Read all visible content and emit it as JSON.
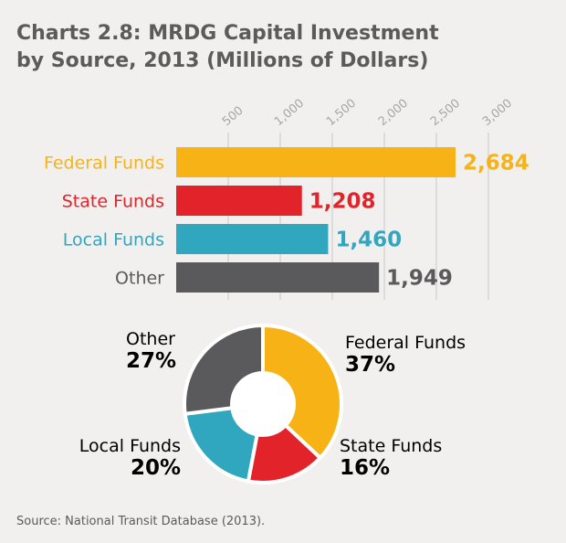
{
  "chart_data": [
    {
      "type": "bar",
      "title": "Charts 2.8: MRDG Capital Investment",
      "subtitle": "by Source, 2013 (Millions of Dollars)",
      "orientation": "horizontal",
      "categories": [
        "Federal Funds",
        "State Funds",
        "Local Funds",
        "Other"
      ],
      "values": [
        2684,
        1208,
        1460,
        1949
      ],
      "value_labels": [
        "2,684",
        "1,208",
        "1,460",
        "1,949"
      ],
      "xlim": [
        0,
        3000
      ],
      "x_ticks": [
        500,
        1000,
        1500,
        2000,
        2500,
        3000
      ],
      "x_tick_labels": [
        "500",
        "1,000",
        "1,500",
        "2,000",
        "2,500",
        "3,000"
      ],
      "grid": true
    },
    {
      "type": "pie",
      "style": "donut",
      "categories": [
        "Federal Funds",
        "State Funds",
        "Local Funds",
        "Other"
      ],
      "values": [
        37,
        16,
        20,
        27
      ],
      "value_labels": [
        "37%",
        "16%",
        "20%",
        "27%"
      ]
    }
  ],
  "colors": {
    "federal": "#f7b315",
    "state": "#e2242a",
    "local": "#30a7bf",
    "other": "#5a5a5c",
    "grid": "#c9c9c9",
    "title": "#5b5b5b"
  },
  "source": "Source: National Transit Database (2013)."
}
